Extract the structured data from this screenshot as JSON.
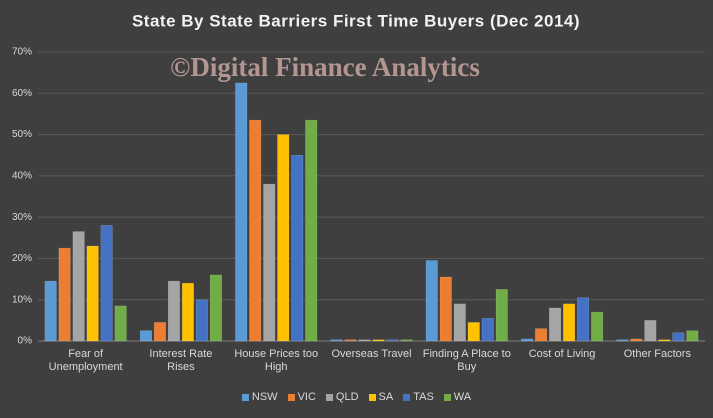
{
  "chart_data": {
    "type": "bar",
    "title": "State By State Barriers  First Time Buyers (Dec 2014)",
    "watermark": "©Digital Finance Analytics",
    "categories": [
      "Fear of Unemployment",
      "Interest Rate Rises",
      "House Prices too High",
      "Overseas Travel",
      "Finding A Place to Buy",
      "Cost of Living",
      "Other Factors"
    ],
    "series": [
      {
        "name": "NSW",
        "color": "#5b9bd5",
        "values": [
          14.5,
          2.5,
          62.5,
          0.3,
          19.5,
          0.5,
          0.3
        ]
      },
      {
        "name": "VIC",
        "color": "#ed7d31",
        "values": [
          22.5,
          4.5,
          53.5,
          0.3,
          15.5,
          3,
          0.5
        ]
      },
      {
        "name": "QLD",
        "color": "#a5a5a5",
        "values": [
          26.5,
          14.5,
          38,
          0.3,
          9,
          8,
          5
        ]
      },
      {
        "name": "SA",
        "color": "#ffc000",
        "values": [
          23,
          14,
          50,
          0.3,
          4.5,
          9,
          0.3
        ]
      },
      {
        "name": "TAS",
        "color": "#4472c4",
        "values": [
          28,
          10,
          45,
          0.3,
          5.5,
          10.5,
          2
        ]
      },
      {
        "name": "WA",
        "color": "#70ad47",
        "values": [
          8.5,
          16,
          53.5,
          0.3,
          12.5,
          7,
          2.5
        ]
      }
    ],
    "ylim": [
      0,
      70
    ],
    "yticks": [
      {
        "value": 0,
        "label": "0%"
      },
      {
        "value": 10,
        "label": "10%"
      },
      {
        "value": 20,
        "label": "20%"
      },
      {
        "value": 30,
        "label": "30%"
      },
      {
        "value": 40,
        "label": "40%"
      },
      {
        "value": 50,
        "label": "50%"
      },
      {
        "value": 60,
        "label": "60%"
      },
      {
        "value": 70,
        "label": "70%"
      }
    ],
    "grid": true,
    "legend": "bottom"
  }
}
